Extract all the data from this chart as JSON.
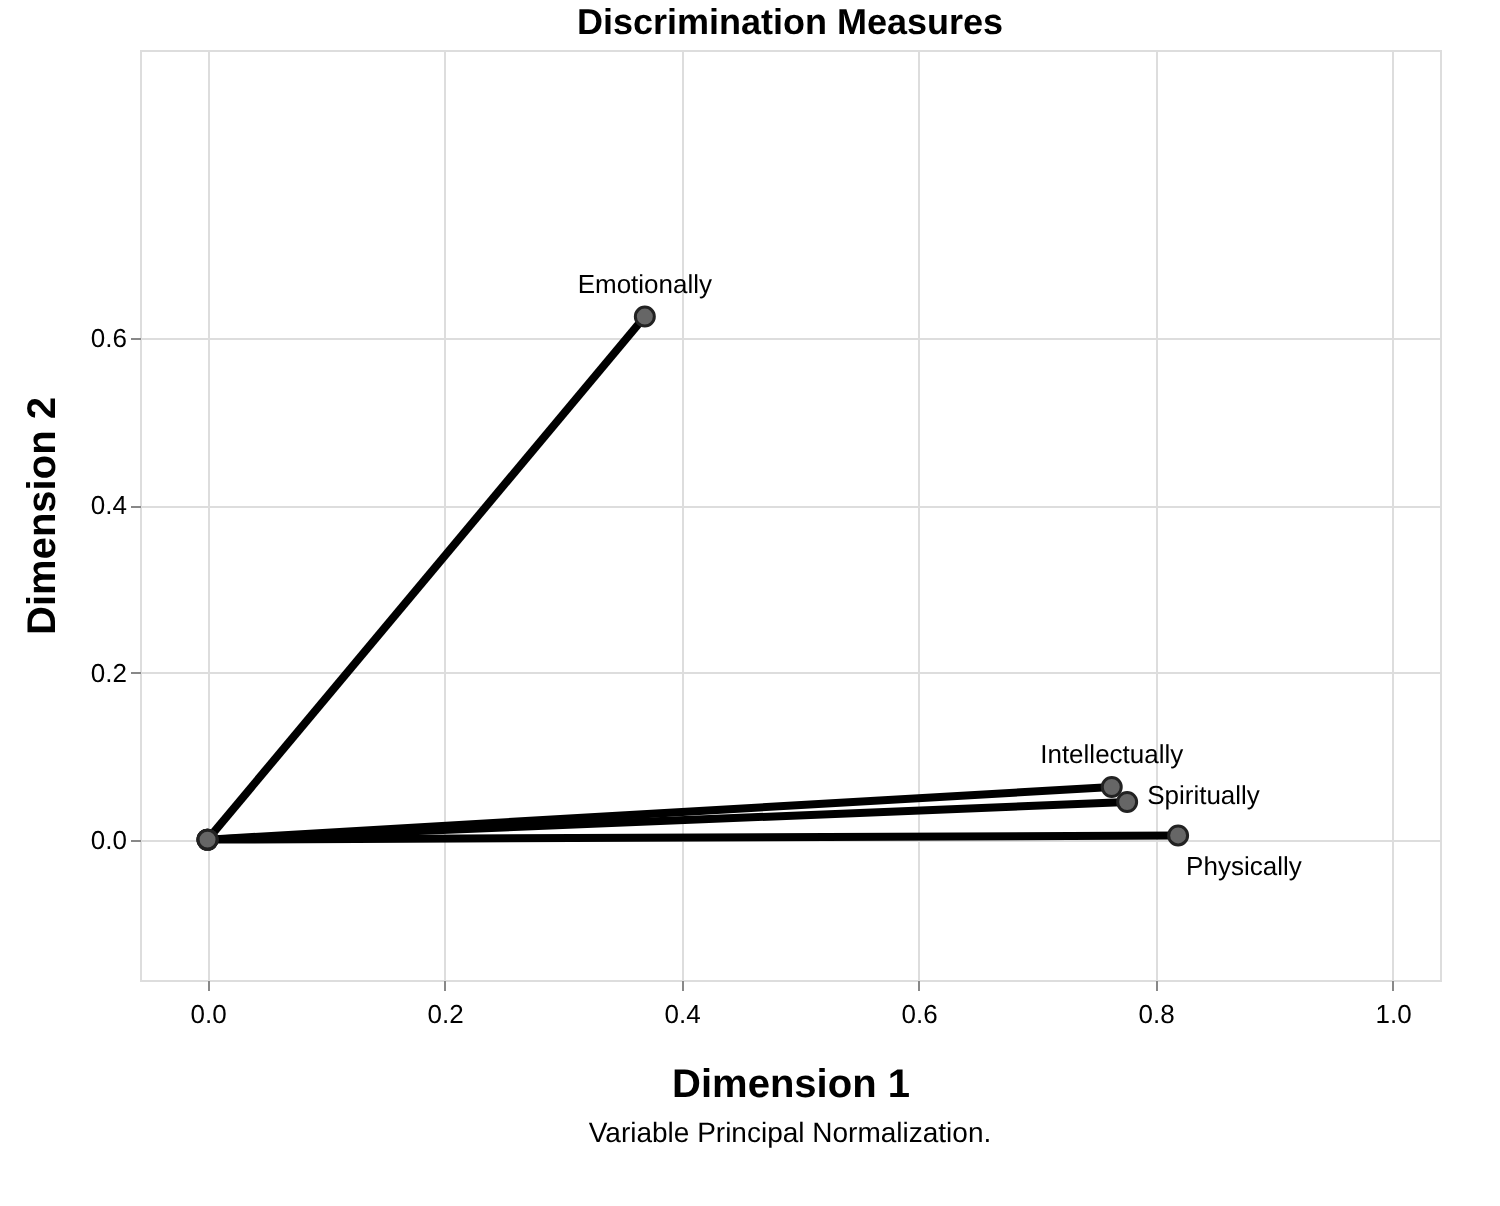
{
  "chart_data": {
    "type": "line",
    "title": "Discrimination Measures",
    "xlabel": "Dimension 1",
    "ylabel": "Dimension 2",
    "series": [
      {
        "name": "Emotionally",
        "color": "#000000",
        "x": [
          0,
          0.369
        ],
        "values": [
          0,
          0.626
        ]
      },
      {
        "name": "Intellectually",
        "color": "#000000",
        "x": [
          0,
          0.763
        ],
        "values": [
          0,
          0.063
        ]
      },
      {
        "name": "Spiritually",
        "color": "#000000",
        "x": [
          0,
          0.776
        ],
        "values": [
          0,
          0.045
        ]
      },
      {
        "name": "Physically",
        "color": "#000000",
        "x": [
          0,
          0.819
        ],
        "values": [
          0,
          0.005
        ]
      }
    ],
    "xlim": [
      -0.057,
      1.04
    ],
    "ylim": [
      -0.168,
      0.945
    ],
    "xticks": [
      {
        "value": 0,
        "label": "0.0"
      },
      {
        "value": 0.2,
        "label": "0.2"
      },
      {
        "value": 0.4,
        "label": "0.4"
      },
      {
        "value": 0.6,
        "label": "0.6"
      },
      {
        "value": 0.8,
        "label": "0.8"
      },
      {
        "value": 1.0,
        "label": "1.0"
      }
    ],
    "yticks": [
      {
        "value": 0,
        "label": "0.0"
      },
      {
        "value": 0.2,
        "label": "0.2"
      },
      {
        "value": 0.4,
        "label": "0.4"
      },
      {
        "value": 0.6,
        "label": "0.6"
      }
    ],
    "grid": true,
    "marker": "circle",
    "line_style": "solid",
    "annotations": [
      "Variable Principal Normalization."
    ]
  }
}
